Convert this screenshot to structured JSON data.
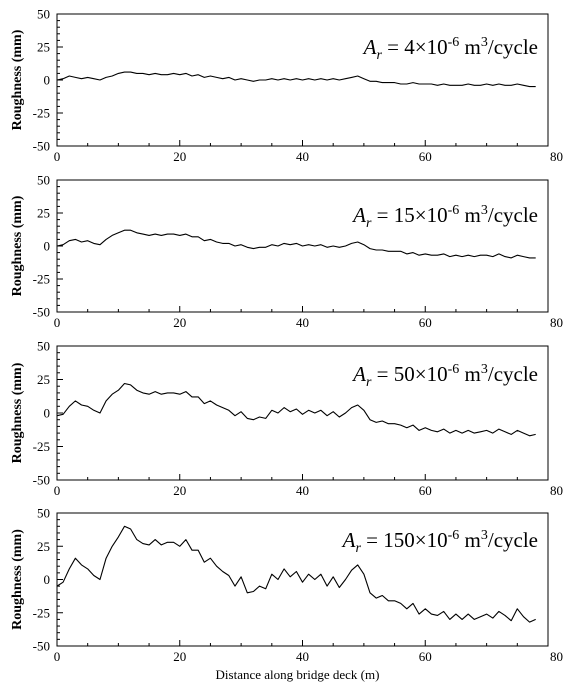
{
  "chart_data": [
    {
      "type": "line",
      "xlabel": "",
      "ylabel": "Roughness (mm)",
      "xlim": [
        0,
        80
      ],
      "ylim": [
        -50,
        50
      ],
      "xticks": [
        "0",
        "20",
        "40",
        "60",
        "80"
      ],
      "yticks": [
        "50",
        "25",
        "0",
        "-25",
        "-50"
      ],
      "annotation": {
        "sym": "A",
        "sub": "r",
        "pre": " = 4×10",
        "exp": "-6",
        "unit": " m",
        "unitexp": "3",
        "post": "/cycle"
      },
      "series": [
        {
          "x": [
            0,
            1,
            2,
            3,
            4,
            5,
            6,
            7,
            8,
            9,
            10,
            11,
            12,
            13,
            14,
            15,
            16,
            17,
            18,
            19,
            20,
            21,
            22,
            23,
            24,
            25,
            26,
            27,
            28,
            29,
            30,
            31,
            32,
            33,
            34,
            35,
            36,
            37,
            38,
            39,
            40,
            41,
            42,
            43,
            44,
            45,
            46,
            47,
            48,
            49,
            50,
            51,
            52,
            53,
            54,
            55,
            56,
            57,
            58,
            59,
            60,
            61,
            62,
            63,
            64,
            65,
            66,
            67,
            68,
            69,
            70,
            71,
            72,
            73,
            74,
            75,
            76,
            77,
            78
          ],
          "y": [
            0,
            1,
            3,
            2,
            1,
            2,
            1,
            0,
            2,
            3,
            5,
            6,
            6,
            5,
            5,
            4,
            5,
            4,
            4,
            5,
            4,
            5,
            3,
            4,
            2,
            3,
            2,
            1,
            2,
            0,
            1,
            0,
            -1,
            0,
            0,
            1,
            0,
            1,
            0,
            1,
            0,
            1,
            0,
            1,
            0,
            1,
            0,
            1,
            2,
            3,
            1,
            -1,
            -1,
            -2,
            -2,
            -2,
            -3,
            -3,
            -2,
            -3,
            -3,
            -3,
            -4,
            -3,
            -4,
            -4,
            -4,
            -3,
            -4,
            -4,
            -3,
            -4,
            -3,
            -4,
            -4,
            -3,
            -4,
            -5,
            -5
          ]
        }
      ]
    },
    {
      "type": "line",
      "xlabel": "",
      "ylabel": "Roughness (mm)",
      "xlim": [
        0,
        80
      ],
      "ylim": [
        -50,
        50
      ],
      "xticks": [
        "0",
        "20",
        "40",
        "60",
        "80"
      ],
      "yticks": [
        "50",
        "25",
        "0",
        "-25",
        "-50"
      ],
      "annotation": {
        "sym": "A",
        "sub": "r",
        "pre": " = 15×10",
        "exp": "-6",
        "unit": " m",
        "unitexp": "3",
        "post": "/cycle"
      },
      "series": [
        {
          "x": [
            0,
            1,
            2,
            3,
            4,
            5,
            6,
            7,
            8,
            9,
            10,
            11,
            12,
            13,
            14,
            15,
            16,
            17,
            18,
            19,
            20,
            21,
            22,
            23,
            24,
            25,
            26,
            27,
            28,
            29,
            30,
            31,
            32,
            33,
            34,
            35,
            36,
            37,
            38,
            39,
            40,
            41,
            42,
            43,
            44,
            45,
            46,
            47,
            48,
            49,
            50,
            51,
            52,
            53,
            54,
            55,
            56,
            57,
            58,
            59,
            60,
            61,
            62,
            63,
            64,
            65,
            66,
            67,
            68,
            69,
            70,
            71,
            72,
            73,
            74,
            75,
            76,
            77,
            78
          ],
          "y": [
            0,
            1,
            4,
            5,
            3,
            4,
            2,
            1,
            5,
            8,
            10,
            12,
            12,
            10,
            9,
            8,
            9,
            8,
            9,
            9,
            8,
            9,
            7,
            7,
            4,
            5,
            3,
            2,
            2,
            0,
            1,
            -1,
            -2,
            -1,
            -1,
            1,
            0,
            2,
            1,
            2,
            0,
            1,
            0,
            1,
            -1,
            0,
            -1,
            0,
            2,
            3,
            1,
            -2,
            -3,
            -3,
            -4,
            -4,
            -4,
            -6,
            -5,
            -7,
            -6,
            -7,
            -7,
            -6,
            -8,
            -7,
            -8,
            -7,
            -8,
            -7,
            -7,
            -8,
            -6,
            -8,
            -9,
            -7,
            -8,
            -9,
            -9
          ]
        }
      ]
    },
    {
      "type": "line",
      "xlabel": "",
      "ylabel": "Roughness (mm)",
      "xlim": [
        0,
        80
      ],
      "ylim": [
        -50,
        50
      ],
      "xticks": [
        "0",
        "20",
        "40",
        "60",
        "80"
      ],
      "yticks": [
        "50",
        "25",
        "0",
        "-25",
        "-50"
      ],
      "annotation": {
        "sym": "A",
        "sub": "r",
        "pre": " = 50×10",
        "exp": "-6",
        "unit": " m",
        "unitexp": "3",
        "post": "/cycle"
      },
      "series": [
        {
          "x": [
            0,
            1,
            2,
            3,
            4,
            5,
            6,
            7,
            8,
            9,
            10,
            11,
            12,
            13,
            14,
            15,
            16,
            17,
            18,
            19,
            20,
            21,
            22,
            23,
            24,
            25,
            26,
            27,
            28,
            29,
            30,
            31,
            32,
            33,
            34,
            35,
            36,
            37,
            38,
            39,
            40,
            41,
            42,
            43,
            44,
            45,
            46,
            47,
            48,
            49,
            50,
            51,
            52,
            53,
            54,
            55,
            56,
            57,
            58,
            59,
            60,
            61,
            62,
            63,
            64,
            65,
            66,
            67,
            68,
            69,
            70,
            71,
            72,
            73,
            74,
            75,
            76,
            77,
            78
          ],
          "y": [
            -2,
            -1,
            5,
            9,
            6,
            5,
            2,
            0,
            9,
            14,
            17,
            22,
            21,
            17,
            15,
            14,
            16,
            14,
            15,
            15,
            14,
            16,
            12,
            12,
            7,
            9,
            6,
            4,
            2,
            -2,
            1,
            -4,
            -5,
            -3,
            -4,
            2,
            0,
            4,
            1,
            3,
            -1,
            2,
            0,
            2,
            -2,
            1,
            -3,
            0,
            4,
            6,
            2,
            -5,
            -7,
            -6,
            -8,
            -8,
            -9,
            -11,
            -9,
            -13,
            -11,
            -13,
            -14,
            -12,
            -15,
            -13,
            -15,
            -13,
            -15,
            -14,
            -13,
            -15,
            -12,
            -14,
            -16,
            -13,
            -15,
            -17,
            -16
          ]
        }
      ]
    },
    {
      "type": "line",
      "xlabel": "Distance along bridge deck (m)",
      "ylabel": "Roughness (mm)",
      "xlim": [
        0,
        80
      ],
      "ylim": [
        -50,
        50
      ],
      "xticks": [
        "0",
        "20",
        "40",
        "60",
        "80"
      ],
      "yticks": [
        "50",
        "25",
        "0",
        "-25",
        "-50"
      ],
      "annotation": {
        "sym": "A",
        "sub": "r",
        "pre": " = 150×10",
        "exp": "-6",
        "unit": " m",
        "unitexp": "3",
        "post": "/cycle"
      },
      "series": [
        {
          "x": [
            0,
            1,
            2,
            3,
            4,
            5,
            6,
            7,
            8,
            9,
            10,
            11,
            12,
            13,
            14,
            15,
            16,
            17,
            18,
            19,
            20,
            21,
            22,
            23,
            24,
            25,
            26,
            27,
            28,
            29,
            30,
            31,
            32,
            33,
            34,
            35,
            36,
            37,
            38,
            39,
            40,
            41,
            42,
            43,
            44,
            45,
            46,
            47,
            48,
            49,
            50,
            51,
            52,
            53,
            54,
            55,
            56,
            57,
            58,
            59,
            60,
            61,
            62,
            63,
            64,
            65,
            66,
            67,
            68,
            69,
            70,
            71,
            72,
            73,
            74,
            75,
            76,
            77,
            78
          ],
          "y": [
            -5,
            -2,
            8,
            16,
            11,
            8,
            3,
            0,
            16,
            25,
            32,
            40,
            38,
            30,
            27,
            26,
            30,
            26,
            28,
            28,
            25,
            30,
            22,
            22,
            13,
            16,
            10,
            6,
            3,
            -5,
            2,
            -10,
            -9,
            -5,
            -7,
            4,
            0,
            8,
            2,
            6,
            -2,
            4,
            0,
            4,
            -5,
            2,
            -6,
            0,
            7,
            11,
            4,
            -10,
            -14,
            -12,
            -16,
            -16,
            -18,
            -22,
            -18,
            -26,
            -22,
            -26,
            -27,
            -24,
            -30,
            -26,
            -30,
            -26,
            -30,
            -28,
            -26,
            -29,
            -24,
            -27,
            -31,
            -22,
            -28,
            -32,
            -30
          ]
        }
      ]
    }
  ]
}
